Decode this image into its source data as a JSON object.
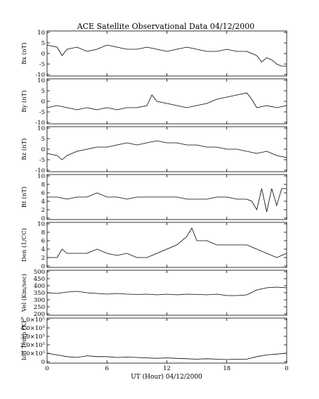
{
  "title": "ACE Satellite Observational Data   04/12/2000",
  "xlabel": "UT (Hour)  04/12/2000",
  "chart_data": [
    {
      "type": "line",
      "ylabel": "Bx (nT)",
      "ylim": [
        -10,
        10
      ],
      "yticks": [
        "10",
        "5",
        "0",
        "-5",
        "-10"
      ],
      "xlim": [
        0,
        24
      ],
      "xticks": [
        "0",
        "6",
        "12",
        "18",
        "0"
      ],
      "series": [
        {
          "x": [
            0,
            1,
            1.5,
            2,
            3,
            4,
            5,
            6,
            7,
            8,
            9,
            10,
            11,
            12,
            13,
            14,
            15,
            16,
            17,
            18,
            19,
            20,
            21,
            21.5,
            22,
            22.5,
            23,
            23.5,
            24
          ],
          "values": [
            4,
            3,
            -1,
            2,
            3,
            1,
            2,
            4,
            3,
            2,
            2,
            3,
            2,
            1,
            2,
            3,
            2,
            1,
            1,
            2,
            1,
            1,
            -1,
            -4,
            -2,
            -3,
            -5,
            -6,
            -6
          ]
        }
      ]
    },
    {
      "type": "line",
      "ylabel": "By (nT)",
      "ylim": [
        -10,
        10
      ],
      "yticks": [
        "10",
        "5",
        "0",
        "-5",
        "-10"
      ],
      "xlim": [
        0,
        24
      ],
      "xticks": [
        "0",
        "6",
        "12",
        "18",
        "0"
      ],
      "series": [
        {
          "x": [
            0,
            1,
            2,
            3,
            4,
            5,
            6,
            7,
            8,
            9,
            10,
            10.5,
            11,
            12,
            13,
            14,
            15,
            16,
            17,
            18,
            19,
            20,
            20.5,
            21,
            22,
            23,
            24
          ],
          "values": [
            -3,
            -2,
            -3,
            -4,
            -3,
            -4,
            -3,
            -4,
            -3,
            -3,
            -2,
            3,
            0,
            -1,
            -2,
            -3,
            -2,
            -1,
            1,
            2,
            3,
            4,
            1,
            -3,
            -2,
            -3,
            -2
          ]
        }
      ]
    },
    {
      "type": "line",
      "ylabel": "Bz (nT)",
      "ylim": [
        -10,
        10
      ],
      "yticks": [
        "10",
        "5",
        "0",
        "-5",
        "-10"
      ],
      "xlim": [
        0,
        24
      ],
      "xticks": [
        "0",
        "6",
        "12",
        "18",
        "0"
      ],
      "series": [
        {
          "x": [
            0,
            1,
            1.5,
            2,
            3,
            4,
            5,
            6,
            7,
            8,
            9,
            10,
            11,
            12,
            13,
            14,
            15,
            16,
            17,
            18,
            19,
            20,
            21,
            22,
            23,
            24
          ],
          "values": [
            -2,
            -3,
            -5,
            -3,
            -1,
            0,
            1,
            1,
            2,
            3,
            2,
            3,
            4,
            3,
            3,
            2,
            2,
            1,
            1,
            0,
            0,
            -1,
            -2,
            -1,
            -3,
            -4
          ]
        }
      ]
    },
    {
      "type": "line",
      "ylabel": "Bt (nT)",
      "ylim": [
        0,
        10
      ],
      "yticks": [
        "10",
        "8",
        "6",
        "4",
        "2",
        "0"
      ],
      "xlim": [
        0,
        24
      ],
      "xticks": [
        "0",
        "6",
        "12",
        "18",
        "0"
      ],
      "series": [
        {
          "x": [
            0,
            1,
            2,
            3,
            4,
            5,
            6,
            7,
            8,
            9,
            10,
            11,
            12,
            13,
            14,
            15,
            16,
            17,
            18,
            19,
            20,
            20.5,
            21,
            21.5,
            22,
            22.5,
            23,
            23.5,
            24
          ],
          "values": [
            5,
            5,
            4.5,
            5,
            5,
            6,
            5,
            5,
            4.5,
            5,
            5,
            5,
            5,
            5,
            4.5,
            4.5,
            4.5,
            5,
            5,
            4.5,
            4.5,
            4,
            2,
            7,
            1.5,
            7,
            3,
            7,
            7
          ]
        }
      ]
    },
    {
      "type": "line",
      "ylabel": "Den (1/CC)",
      "ylim": [
        0,
        10
      ],
      "yticks": [
        "10",
        "8",
        "6",
        "4",
        "2",
        "0"
      ],
      "xlim": [
        0,
        24
      ],
      "xticks": [
        "0",
        "6",
        "12",
        "18",
        "0"
      ],
      "series": [
        {
          "x": [
            0,
            1,
            1.5,
            2,
            3,
            4,
            5,
            6,
            7,
            8,
            9,
            10,
            11,
            12,
            13,
            14,
            14.5,
            15,
            16,
            17,
            18,
            19,
            20,
            21,
            22,
            23,
            24
          ],
          "values": [
            2,
            2,
            4,
            3,
            3,
            3,
            4,
            3,
            2.5,
            3,
            2,
            2,
            3,
            4,
            5,
            7,
            9,
            6,
            6,
            5,
            5,
            5,
            5,
            4,
            3,
            2,
            3
          ]
        }
      ]
    },
    {
      "type": "line",
      "ylabel": "Vel (Km/sec)",
      "ylim": [
        200,
        500
      ],
      "yticks": [
        "500",
        "450",
        "400",
        "350",
        "300",
        "250",
        "200"
      ],
      "xlim": [
        0,
        24
      ],
      "xticks": [
        "0",
        "6",
        "12",
        "18",
        "0"
      ],
      "series": [
        {
          "x": [
            0,
            1,
            2,
            3,
            4,
            5,
            6,
            7,
            8,
            9,
            10,
            11,
            12,
            13,
            14,
            15,
            16,
            17,
            18,
            19,
            20,
            21,
            22,
            23,
            24
          ],
          "values": [
            350,
            345,
            355,
            360,
            350,
            345,
            340,
            345,
            340,
            338,
            340,
            335,
            340,
            335,
            340,
            338,
            335,
            340,
            330,
            330,
            335,
            370,
            385,
            390,
            385
          ]
        }
      ]
    },
    {
      "type": "line",
      "ylabel": "Ion Temp (K)",
      "ylim": [
        0,
        500000
      ],
      "yticks": [
        "5.0×10⁵",
        "4.0×10⁵",
        "3.0×10⁵",
        "2.0×10⁵",
        "1.0×10⁵",
        "0"
      ],
      "xlim": [
        0,
        24
      ],
      "xticks": [
        "0",
        "6",
        "12",
        "18",
        "0"
      ],
      "series": [
        {
          "x": [
            0,
            1,
            2,
            3,
            4,
            5,
            6,
            7,
            8,
            9,
            10,
            11,
            12,
            13,
            14,
            15,
            16,
            17,
            18,
            19,
            20,
            21,
            22,
            23,
            24
          ],
          "values": [
            100000,
            80000,
            60000,
            50000,
            70000,
            60000,
            60000,
            50000,
            55000,
            50000,
            45000,
            40000,
            45000,
            40000,
            35000,
            30000,
            35000,
            30000,
            25000,
            30000,
            30000,
            60000,
            80000,
            90000,
            100000
          ]
        }
      ]
    }
  ]
}
